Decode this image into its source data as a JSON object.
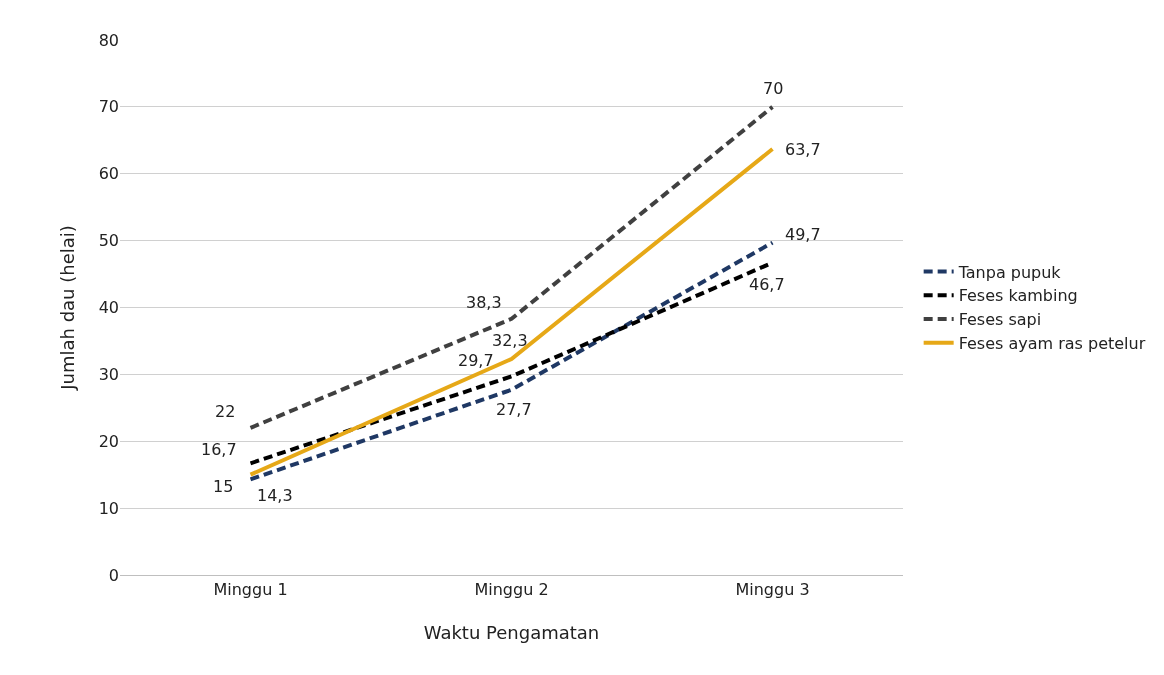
{
  "chart_data": {
    "type": "line",
    "xlabel": "Waktu Pengamatan",
    "ylabel": "Jumlah dau (helai)",
    "categories": [
      "Minggu 1",
      "Minggu 2",
      "Minggu 3"
    ],
    "series": [
      {
        "name": "Tanpa pupuk",
        "color": "#1f3864",
        "line_style": "dashed",
        "values": [
          14.3,
          27.7,
          49.7
        ],
        "value_labels": [
          "14,3",
          "27,7",
          "49,7"
        ]
      },
      {
        "name": "Feses kambing",
        "color": "#000000",
        "line_style": "dashed",
        "values": [
          16.7,
          29.7,
          46.7
        ],
        "value_labels": [
          "16,7",
          "29,7",
          "46,7"
        ]
      },
      {
        "name": "Feses sapi",
        "color": "#404040",
        "line_style": "dashed",
        "values": [
          22,
          38.3,
          70
        ],
        "value_labels": [
          "22",
          "38,3",
          "70"
        ]
      },
      {
        "name": "Feses ayam ras petelur",
        "color": "#e6a817",
        "line_style": "solid",
        "values": [
          15,
          32.3,
          63.7
        ],
        "value_labels": [
          "15",
          "32,3",
          "63,7"
        ]
      }
    ],
    "ylim": [
      0,
      80
    ],
    "yticks": [
      0,
      10,
      20,
      30,
      40,
      50,
      60,
      70,
      80
    ],
    "grid": "y",
    "legend": "right",
    "marker": "none"
  }
}
